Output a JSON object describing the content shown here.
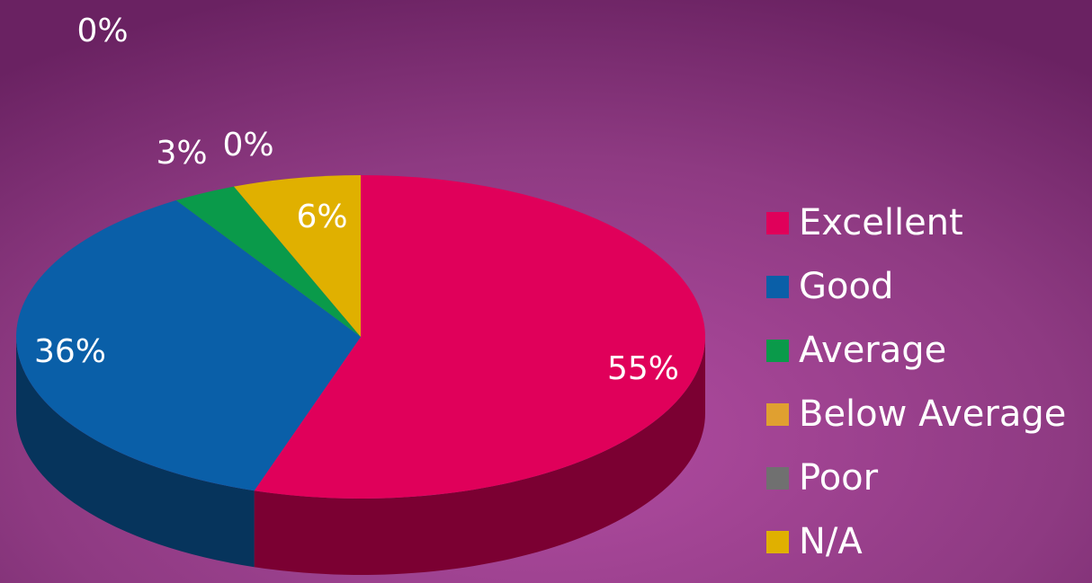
{
  "chart_data": {
    "type": "pie",
    "categories": [
      "Excellent",
      "Good",
      "Average",
      "Below Average",
      "Poor",
      "N/A"
    ],
    "values": [
      55,
      36,
      3,
      0,
      0,
      6
    ],
    "value_labels": [
      "55%",
      "36%",
      "3%",
      "0%",
      "0%",
      "6%"
    ],
    "colors": [
      "#e0005a",
      "#0a5fa8",
      "#0a9a4a",
      "#e0a030",
      "#707070",
      "#e0b000"
    ],
    "legend": "right"
  }
}
